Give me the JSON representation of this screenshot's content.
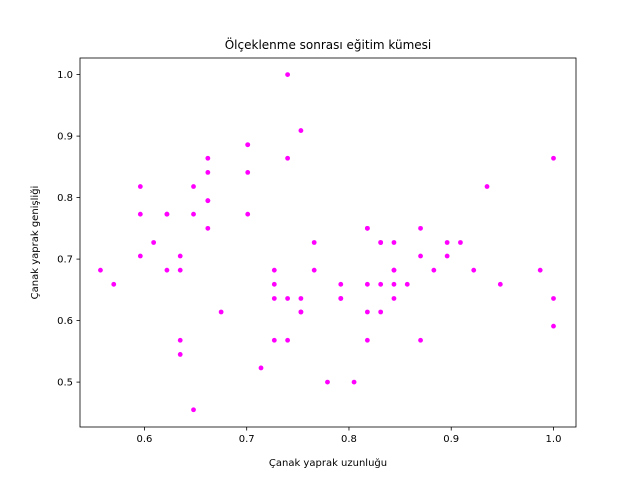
{
  "chart_data": {
    "type": "scatter",
    "title": "Ölçeklenme sonrası eğitim kümesi",
    "xlabel": "Çanak yaprak uzunluğu",
    "ylabel": "Çanak yaprak genişliği",
    "xlim": [
      0.537,
      1.022
    ],
    "ylim": [
      0.427,
      1.027
    ],
    "xticks": [
      0.6,
      0.7,
      0.8,
      0.9,
      1.0
    ],
    "xtick_labels": [
      "0.6",
      "0.7",
      "0.8",
      "0.9",
      "1.0"
    ],
    "yticks": [
      0.5,
      0.6,
      0.7,
      0.8,
      0.9,
      1.0
    ],
    "ytick_labels": [
      "0.5",
      "0.6",
      "0.7",
      "0.8",
      "0.9",
      "1.0"
    ],
    "grid": false,
    "marker_color": "#ff00ff",
    "points": [
      {
        "x": 0.557,
        "y": 0.682
      },
      {
        "x": 0.57,
        "y": 0.659
      },
      {
        "x": 0.596,
        "y": 0.818
      },
      {
        "x": 0.596,
        "y": 0.773
      },
      {
        "x": 0.596,
        "y": 0.705
      },
      {
        "x": 0.609,
        "y": 0.727
      },
      {
        "x": 0.622,
        "y": 0.773
      },
      {
        "x": 0.622,
        "y": 0.773
      },
      {
        "x": 0.622,
        "y": 0.682
      },
      {
        "x": 0.635,
        "y": 0.705
      },
      {
        "x": 0.635,
        "y": 0.682
      },
      {
        "x": 0.635,
        "y": 0.568
      },
      {
        "x": 0.635,
        "y": 0.545
      },
      {
        "x": 0.648,
        "y": 0.818
      },
      {
        "x": 0.648,
        "y": 0.773
      },
      {
        "x": 0.648,
        "y": 0.455
      },
      {
        "x": 0.662,
        "y": 0.864
      },
      {
        "x": 0.662,
        "y": 0.841
      },
      {
        "x": 0.662,
        "y": 0.795
      },
      {
        "x": 0.662,
        "y": 0.795
      },
      {
        "x": 0.662,
        "y": 0.75
      },
      {
        "x": 0.675,
        "y": 0.614
      },
      {
        "x": 0.701,
        "y": 0.886
      },
      {
        "x": 0.701,
        "y": 0.886
      },
      {
        "x": 0.701,
        "y": 0.841
      },
      {
        "x": 0.701,
        "y": 0.773
      },
      {
        "x": 0.714,
        "y": 0.523
      },
      {
        "x": 0.727,
        "y": 0.682
      },
      {
        "x": 0.727,
        "y": 0.659
      },
      {
        "x": 0.727,
        "y": 0.636
      },
      {
        "x": 0.727,
        "y": 0.568
      },
      {
        "x": 0.74,
        "y": 1.0
      },
      {
        "x": 0.74,
        "y": 0.864
      },
      {
        "x": 0.74,
        "y": 0.636
      },
      {
        "x": 0.74,
        "y": 0.568
      },
      {
        "x": 0.753,
        "y": 0.909
      },
      {
        "x": 0.753,
        "y": 0.636
      },
      {
        "x": 0.753,
        "y": 0.614
      },
      {
        "x": 0.753,
        "y": 0.614
      },
      {
        "x": 0.766,
        "y": 0.727
      },
      {
        "x": 0.766,
        "y": 0.682
      },
      {
        "x": 0.779,
        "y": 0.5
      },
      {
        "x": 0.792,
        "y": 0.659
      },
      {
        "x": 0.792,
        "y": 0.636
      },
      {
        "x": 0.792,
        "y": 0.636
      },
      {
        "x": 0.805,
        "y": 0.5
      },
      {
        "x": 0.818,
        "y": 0.75
      },
      {
        "x": 0.818,
        "y": 0.75
      },
      {
        "x": 0.818,
        "y": 0.659
      },
      {
        "x": 0.818,
        "y": 0.614
      },
      {
        "x": 0.818,
        "y": 0.568
      },
      {
        "x": 0.831,
        "y": 0.727
      },
      {
        "x": 0.831,
        "y": 0.727
      },
      {
        "x": 0.831,
        "y": 0.659
      },
      {
        "x": 0.831,
        "y": 0.614
      },
      {
        "x": 0.844,
        "y": 0.727
      },
      {
        "x": 0.844,
        "y": 0.682
      },
      {
        "x": 0.844,
        "y": 0.682
      },
      {
        "x": 0.844,
        "y": 0.659
      },
      {
        "x": 0.844,
        "y": 0.636
      },
      {
        "x": 0.857,
        "y": 0.659
      },
      {
        "x": 0.87,
        "y": 0.75
      },
      {
        "x": 0.87,
        "y": 0.705
      },
      {
        "x": 0.87,
        "y": 0.568
      },
      {
        "x": 0.883,
        "y": 0.682
      },
      {
        "x": 0.896,
        "y": 0.727
      },
      {
        "x": 0.896,
        "y": 0.705
      },
      {
        "x": 0.909,
        "y": 0.727
      },
      {
        "x": 0.922,
        "y": 0.682
      },
      {
        "x": 0.935,
        "y": 0.818
      },
      {
        "x": 0.948,
        "y": 0.659
      },
      {
        "x": 0.987,
        "y": 0.682
      },
      {
        "x": 1.0,
        "y": 0.864
      },
      {
        "x": 1.0,
        "y": 0.636
      },
      {
        "x": 1.0,
        "y": 0.591
      }
    ]
  }
}
